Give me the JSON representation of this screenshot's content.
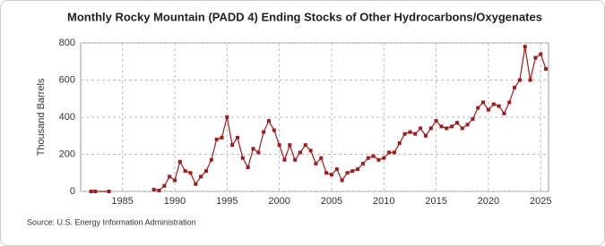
{
  "chart_data": {
    "type": "line",
    "title": "Monthly Rocky Mountain (PADD 4) Ending Stocks of Other Hydrocarbons/Oxygenates",
    "y_label": "Thousand Barrels",
    "source": "Source: U.S. Energy Information Administration",
    "x": [
      1982.0,
      1982.4,
      1983.7,
      1986.0,
      1988.0,
      1988.5,
      1989.0,
      1989.5,
      1990.0,
      1990.5,
      1991.0,
      1991.5,
      1992.0,
      1992.5,
      1993.0,
      1993.5,
      1994.0,
      1994.5,
      1995.0,
      1995.5,
      1996.0,
      1996.5,
      1997.0,
      1997.5,
      1998.0,
      1998.5,
      1999.0,
      1999.5,
      2000.0,
      2000.5,
      2001.0,
      2001.5,
      2002.0,
      2002.5,
      2003.0,
      2003.5,
      2004.0,
      2004.5,
      2005.0,
      2005.5,
      2006.0,
      2006.5,
      2007.0,
      2007.5,
      2008.0,
      2008.5,
      2009.0,
      2009.5,
      2010.0,
      2010.5,
      2011.0,
      2011.5,
      2012.0,
      2012.5,
      2013.0,
      2013.5,
      2014.0,
      2014.5,
      2015.0,
      2015.5,
      2016.0,
      2016.5,
      2017.0,
      2017.5,
      2018.0,
      2018.5,
      2019.0,
      2019.5,
      2020.0,
      2020.5,
      2021.0,
      2021.5,
      2022.0,
      2022.5,
      2023.0,
      2023.5,
      2024.0,
      2024.5,
      2025.0,
      2025.5
    ],
    "series": [
      {
        "color": "#a01c1c",
        "values": [
          0,
          0,
          0,
          null,
          10,
          5,
          30,
          80,
          60,
          160,
          110,
          100,
          40,
          80,
          110,
          170,
          280,
          290,
          400,
          250,
          290,
          180,
          130,
          230,
          210,
          320,
          380,
          330,
          250,
          170,
          250,
          170,
          210,
          250,
          220,
          150,
          180,
          100,
          90,
          120,
          60,
          100,
          110,
          120,
          150,
          180,
          190,
          170,
          180,
          210,
          210,
          260,
          310,
          320,
          310,
          340,
          300,
          340,
          380,
          350,
          340,
          350,
          370,
          340,
          360,
          390,
          450,
          480,
          440,
          470,
          460,
          420,
          480,
          560,
          600,
          780,
          600,
          720,
          740,
          660
        ]
      }
    ],
    "xlim": [
      1981,
      2025.75
    ],
    "ylim": [
      0,
      800
    ],
    "xticks": [
      1985,
      1990,
      1995,
      2000,
      2005,
      2010,
      2015,
      2020,
      2025
    ],
    "yticks": [
      0,
      200,
      400,
      600,
      800
    ],
    "grid": true
  }
}
